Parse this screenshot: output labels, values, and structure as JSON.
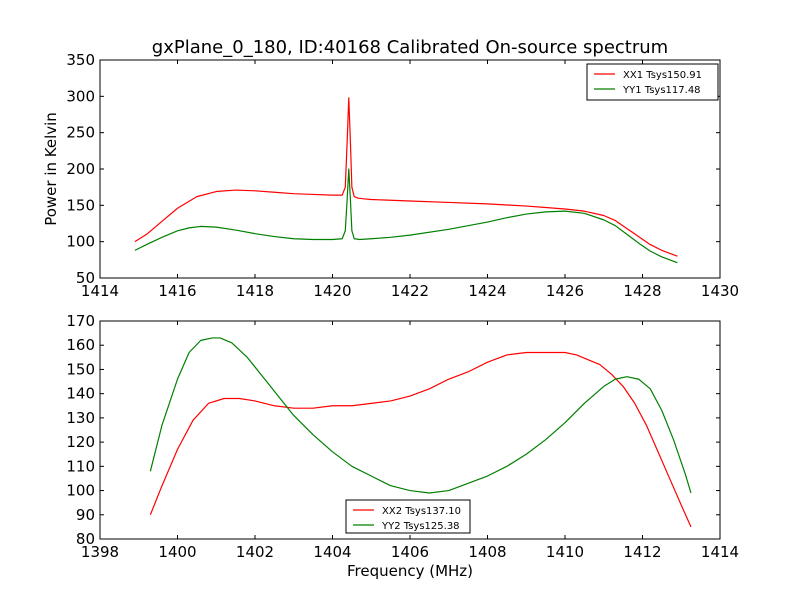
{
  "figure": {
    "title": "gxPlane_0_180, ID:40168 Calibrated On-source spectrum",
    "ylabel_top": "Power in Kelvin",
    "xlabel_bottom": "Frequency (MHz)"
  },
  "chart_data": [
    {
      "type": "line",
      "title": "gxPlane_0_180, ID:40168 Calibrated On-source spectrum",
      "xlabel": "",
      "ylabel": "Power in Kelvin",
      "xlim": [
        1414,
        1430
      ],
      "ylim": [
        50,
        350
      ],
      "xticks": [
        1414,
        1416,
        1418,
        1420,
        1422,
        1424,
        1426,
        1428,
        1430
      ],
      "yticks": [
        50,
        100,
        150,
        200,
        250,
        300,
        350
      ],
      "grid": false,
      "legend": "top-right",
      "series": [
        {
          "name": "XX1 Tsys150.91",
          "color": "#ff0000",
          "x": [
            1414.9,
            1415.2,
            1415.6,
            1416.0,
            1416.5,
            1417.0,
            1417.5,
            1418.0,
            1418.5,
            1419.0,
            1419.5,
            1420.0,
            1420.25,
            1420.33,
            1420.38,
            1420.42,
            1420.46,
            1420.5,
            1420.56,
            1420.65,
            1420.8,
            1421.0,
            1421.5,
            1422.0,
            1423.0,
            1424.0,
            1425.0,
            1425.5,
            1426.0,
            1426.5,
            1427.0,
            1427.3,
            1427.6,
            1427.9,
            1428.2,
            1428.5,
            1428.9
          ],
          "y": [
            100,
            110,
            128,
            146,
            162,
            169,
            171,
            170,
            168,
            166,
            165,
            164,
            164,
            175,
            240,
            298,
            240,
            175,
            162,
            160,
            159,
            158,
            157,
            156,
            154,
            152,
            149,
            147,
            145,
            142,
            136,
            129,
            118,
            107,
            96,
            88,
            80
          ]
        },
        {
          "name": "YY1 Tsys117.48",
          "color": "#008000",
          "x": [
            1414.9,
            1415.2,
            1415.6,
            1416.0,
            1416.3,
            1416.6,
            1417.0,
            1417.5,
            1418.0,
            1418.5,
            1419.0,
            1419.5,
            1420.0,
            1420.25,
            1420.33,
            1420.38,
            1420.42,
            1420.46,
            1420.5,
            1420.56,
            1420.7,
            1421.0,
            1421.5,
            1422.0,
            1423.0,
            1424.0,
            1424.5,
            1425.0,
            1425.5,
            1426.0,
            1426.5,
            1427.0,
            1427.3,
            1427.6,
            1427.9,
            1428.2,
            1428.5,
            1428.9
          ],
          "y": [
            88,
            96,
            106,
            115,
            119,
            121,
            120,
            116,
            111,
            107,
            104,
            103,
            103,
            104,
            115,
            160,
            200,
            160,
            115,
            104,
            103,
            104,
            106,
            109,
            117,
            127,
            133,
            138,
            141,
            142,
            139,
            130,
            122,
            110,
            98,
            87,
            79,
            71
          ]
        }
      ]
    },
    {
      "type": "line",
      "title": "",
      "xlabel": "Frequency (MHz)",
      "ylabel": "",
      "xlim": [
        1398,
        1414
      ],
      "ylim": [
        80,
        170
      ],
      "xticks": [
        1398,
        1400,
        1402,
        1404,
        1406,
        1408,
        1410,
        1412,
        1414
      ],
      "yticks": [
        80,
        90,
        100,
        110,
        120,
        130,
        140,
        150,
        160,
        170
      ],
      "grid": false,
      "legend": "bottom-center",
      "series": [
        {
          "name": "XX2 Tsys137.10",
          "color": "#ff0000",
          "x": [
            1399.3,
            1399.6,
            1400.0,
            1400.4,
            1400.8,
            1401.2,
            1401.6,
            1402.0,
            1402.5,
            1403.0,
            1403.5,
            1404.0,
            1404.5,
            1405.0,
            1405.5,
            1406.0,
            1406.5,
            1407.0,
            1407.5,
            1408.0,
            1408.5,
            1409.0,
            1409.5,
            1410.0,
            1410.3,
            1410.6,
            1410.9,
            1411.2,
            1411.5,
            1411.8,
            1412.1,
            1412.4,
            1412.7,
            1413.0,
            1413.25
          ],
          "y": [
            90,
            102,
            117,
            129,
            136,
            138,
            138,
            137,
            135,
            134,
            134,
            135,
            135,
            136,
            137,
            139,
            142,
            146,
            149,
            153,
            156,
            157,
            157,
            157,
            156,
            154,
            152,
            148,
            143,
            136,
            127,
            116,
            105,
            94,
            85
          ]
        },
        {
          "name": "YY2 Tsys125.38",
          "color": "#008000",
          "x": [
            1399.3,
            1399.6,
            1400.0,
            1400.3,
            1400.6,
            1400.9,
            1401.1,
            1401.4,
            1401.8,
            1402.2,
            1402.6,
            1403.0,
            1403.5,
            1404.0,
            1404.5,
            1405.0,
            1405.5,
            1406.0,
            1406.5,
            1407.0,
            1407.5,
            1408.0,
            1408.5,
            1409.0,
            1409.5,
            1410.0,
            1410.5,
            1411.0,
            1411.3,
            1411.6,
            1411.9,
            1412.2,
            1412.5,
            1412.8,
            1413.1,
            1413.25
          ],
          "y": [
            108,
            127,
            146,
            157,
            162,
            163,
            163,
            161,
            155,
            147,
            139,
            131,
            123,
            116,
            110,
            106,
            102,
            100,
            99,
            100,
            103,
            106,
            110,
            115,
            121,
            128,
            136,
            143,
            146,
            147,
            146,
            142,
            133,
            121,
            107,
            99
          ]
        }
      ]
    }
  ]
}
